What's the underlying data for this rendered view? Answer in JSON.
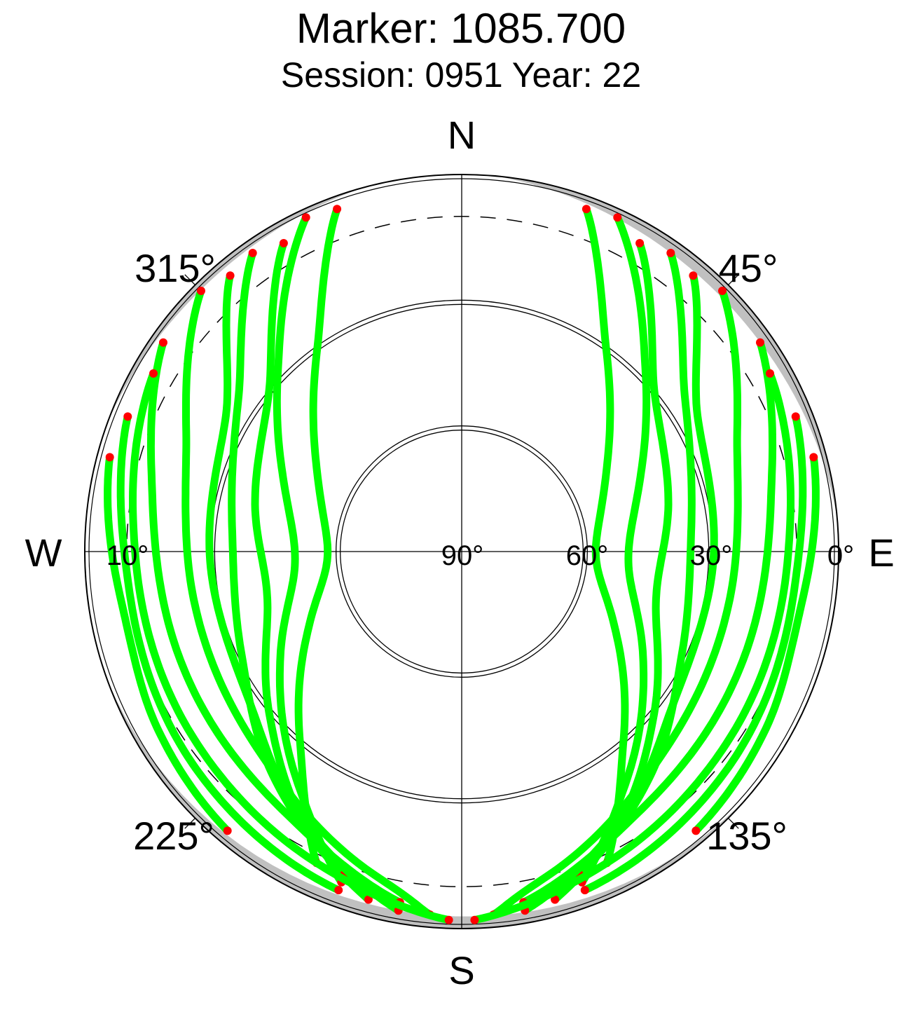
{
  "header": {
    "title": "Marker: 1085.700",
    "subtitle": "Session: 0951 Year: 22"
  },
  "chart_data": {
    "type": "scatter",
    "projection": "polar skyplot (azimuth clockwise from North, elevation 0° at rim to 90° at center)",
    "compass": {
      "north": "N",
      "east": "E",
      "south": "S",
      "west": "W"
    },
    "azimuth_labels": [
      {
        "azimuth": 45,
        "label": "45°"
      },
      {
        "azimuth": 135,
        "label": "135°"
      },
      {
        "azimuth": 225,
        "label": "225°"
      },
      {
        "azimuth": 315,
        "label": "315°"
      }
    ],
    "elevation_labels": [
      {
        "elevation": 0,
        "label": "0°"
      },
      {
        "elevation": 30,
        "label": "30°"
      },
      {
        "elevation": 60,
        "label": "60°"
      },
      {
        "elevation": 90,
        "label": "90°"
      },
      {
        "elevation": 10,
        "label": "10°"
      }
    ],
    "elevation_rings": [
      30,
      60
    ],
    "cutoff_elevation": 10,
    "colors": {
      "track": "#00ff00",
      "low_elevation": "#ff0000",
      "obstruction": "#c0c0c0",
      "grid": "#000000"
    },
    "grid": true,
    "series": [
      {
        "values": [
          [
            20,
            3
          ],
          [
            35,
            30
          ],
          [
            60,
            50
          ],
          [
            90,
            58
          ],
          [
            115,
            50
          ],
          [
            140,
            30
          ],
          [
            155,
            8
          ]
        ]
      },
      {
        "values": [
          [
            25,
            2
          ],
          [
            45,
            28
          ],
          [
            70,
            45
          ],
          [
            95,
            50
          ],
          [
            120,
            40
          ],
          [
            145,
            22
          ],
          [
            160,
            6
          ]
        ]
      },
      {
        "values": [
          [
            30,
            5
          ],
          [
            50,
            30
          ],
          [
            80,
            40
          ],
          [
            105,
            42
          ],
          [
            130,
            30
          ],
          [
            150,
            15
          ],
          [
            165,
            4
          ]
        ]
      },
      {
        "values": [
          [
            35,
            3
          ],
          [
            55,
            25
          ],
          [
            85,
            35
          ],
          [
            115,
            32
          ],
          [
            140,
            20
          ],
          [
            160,
            8
          ]
        ]
      },
      {
        "values": [
          [
            40,
            4
          ],
          [
            60,
            25
          ],
          [
            95,
            30
          ],
          [
            125,
            28
          ],
          [
            150,
            15
          ],
          [
            170,
            3
          ]
        ]
      },
      {
        "values": [
          [
            45,
            2
          ],
          [
            70,
            20
          ],
          [
            100,
            25
          ],
          [
            135,
            22
          ],
          [
            165,
            10
          ],
          [
            175,
            3
          ]
        ]
      },
      {
        "values": [
          [
            55,
            3
          ],
          [
            80,
            15
          ],
          [
            110,
            18
          ],
          [
            145,
            15
          ],
          [
            170,
            5
          ]
        ]
      },
      {
        "values": [
          [
            60,
            5
          ],
          [
            90,
            12
          ],
          [
            125,
            12
          ],
          [
            155,
            8
          ],
          [
            178,
            2
          ]
        ]
      },
      {
        "values": [
          [
            68,
            4
          ],
          [
            95,
            10
          ],
          [
            130,
            8
          ],
          [
            160,
            4
          ]
        ]
      },
      {
        "values": [
          [
            75,
            3
          ],
          [
            100,
            8
          ],
          [
            120,
            6
          ],
          [
            140,
            3
          ]
        ]
      },
      {
        "values": [
          [
            340,
            3
          ],
          [
            325,
            30
          ],
          [
            300,
            50
          ],
          [
            270,
            58
          ],
          [
            245,
            50
          ],
          [
            220,
            30
          ],
          [
            205,
            8
          ]
        ]
      },
      {
        "values": [
          [
            335,
            2
          ],
          [
            315,
            28
          ],
          [
            290,
            45
          ],
          [
            265,
            50
          ],
          [
            240,
            40
          ],
          [
            215,
            22
          ],
          [
            200,
            6
          ]
        ]
      },
      {
        "values": [
          [
            330,
            5
          ],
          [
            310,
            30
          ],
          [
            280,
            40
          ],
          [
            255,
            42
          ],
          [
            230,
            30
          ],
          [
            210,
            15
          ],
          [
            195,
            4
          ]
        ]
      },
      {
        "values": [
          [
            325,
            3
          ],
          [
            305,
            25
          ],
          [
            275,
            35
          ],
          [
            245,
            32
          ],
          [
            220,
            20
          ],
          [
            200,
            8
          ]
        ]
      },
      {
        "values": [
          [
            320,
            4
          ],
          [
            300,
            25
          ],
          [
            265,
            30
          ],
          [
            235,
            28
          ],
          [
            210,
            15
          ],
          [
            190,
            3
          ]
        ]
      },
      {
        "values": [
          [
            315,
            2
          ],
          [
            290,
            20
          ],
          [
            260,
            25
          ],
          [
            225,
            22
          ],
          [
            195,
            10
          ],
          [
            185,
            3
          ]
        ]
      },
      {
        "values": [
          [
            305,
            3
          ],
          [
            280,
            15
          ],
          [
            250,
            18
          ],
          [
            215,
            15
          ],
          [
            190,
            5
          ]
        ]
      },
      {
        "values": [
          [
            300,
            5
          ],
          [
            270,
            12
          ],
          [
            235,
            12
          ],
          [
            205,
            8
          ],
          [
            182,
            2
          ]
        ]
      },
      {
        "values": [
          [
            292,
            4
          ],
          [
            265,
            10
          ],
          [
            230,
            8
          ],
          [
            200,
            4
          ]
        ]
      },
      {
        "values": [
          [
            285,
            3
          ],
          [
            260,
            8
          ],
          [
            240,
            6
          ],
          [
            220,
            3
          ]
        ]
      }
    ]
  }
}
